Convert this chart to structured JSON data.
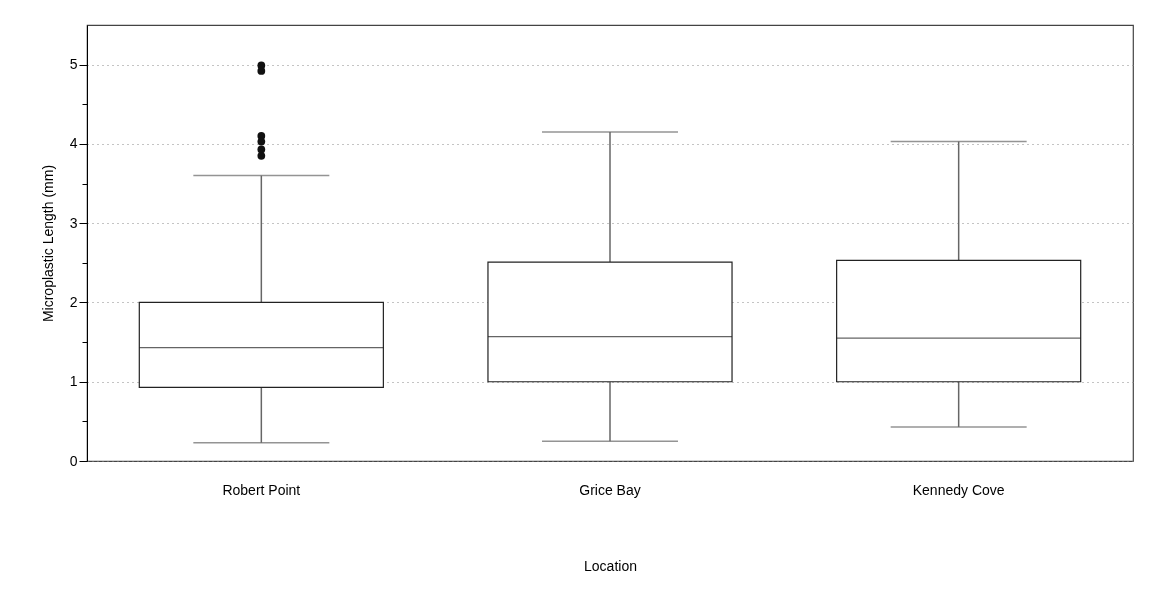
{
  "chart_data": {
    "type": "box",
    "categories": [
      "Robert Point",
      "Grice Bay",
      "Kennedy Cove"
    ],
    "boxes": [
      {
        "low": 0.23,
        "q1": 0.93,
        "median": 1.43,
        "q3": 2.0,
        "high": 3.6,
        "outliers": [
          4.99,
          4.92,
          4.1,
          4.03,
          3.93,
          3.85
        ]
      },
      {
        "low": 0.25,
        "q1": 1.0,
        "median": 1.57,
        "q3": 2.51,
        "high": 4.15
      },
      {
        "low": 0.43,
        "q1": 1.0,
        "median": 1.55,
        "q3": 2.53,
        "high": 4.03
      }
    ],
    "xlabel": "Location",
    "ylabel": "Microplastic Length (mm)",
    "ylim": [
      0,
      5.5
    ],
    "yticks": [
      0,
      {
        "value": 0.5,
        "label": null
      },
      1,
      {
        "value": 1.5,
        "label": null
      },
      2,
      {
        "value": 2.5,
        "label": null
      },
      3,
      {
        "value": 3.5,
        "label": null
      },
      4,
      {
        "value": 4.5,
        "label": null
      },
      5
    ],
    "grid": "y"
  }
}
